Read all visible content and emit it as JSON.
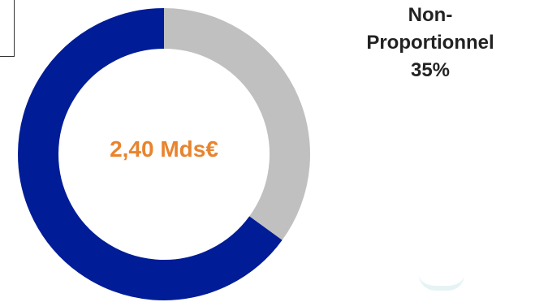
{
  "chart_data": {
    "type": "pie",
    "variant": "donut",
    "center_label": "2,40 Mds€",
    "slices": [
      {
        "label": "Non-Proportionnel",
        "value": 35,
        "value_label": "35%",
        "color": "#c0c0c0"
      },
      {
        "label": "",
        "value": 65,
        "value_label": "",
        "color": "#001c96"
      }
    ],
    "start_angle_deg": 0,
    "direction": "clockwise"
  },
  "labels": {
    "slice_name_line1": "Non-",
    "slice_name_line2": "Proportionnel",
    "slice_percent": "35%"
  },
  "colors": {
    "center_text": "#e8842e",
    "primary": "#001c96",
    "secondary": "#c0c0c0"
  }
}
